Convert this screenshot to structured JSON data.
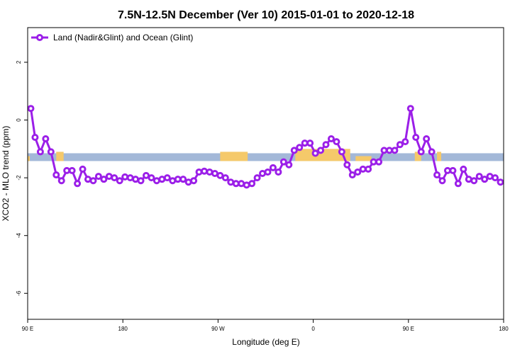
{
  "chart_data": {
    "type": "line",
    "title": "7.5N-12.5N December (Ver 10)   2015-01-01 to 2020-12-18",
    "xlabel": "Longitude (deg E)",
    "ylabel": "XCO2 - MLO trend (ppm)",
    "x_ticks": [
      {
        "value": 90,
        "label": "90 E"
      },
      {
        "value": 180,
        "label": "180"
      },
      {
        "value": 270,
        "label": "90 W"
      },
      {
        "value": 360,
        "label": "0"
      },
      {
        "value": 450,
        "label": "90 E"
      },
      {
        "value": 540,
        "label": "180"
      }
    ],
    "y_ticks": [
      {
        "value": 2,
        "label": "2"
      },
      {
        "value": 0,
        "label": "0"
      },
      {
        "value": -2,
        "label": "-2"
      },
      {
        "value": -4,
        "label": "-4"
      },
      {
        "value": -6,
        "label": "-6"
      }
    ],
    "xlim": [
      90,
      540
    ],
    "ylim": [
      -6.9,
      3.2
    ],
    "legend_position": "top-left",
    "grid": false,
    "colors": {
      "series": "#9b1fe8",
      "ocean_band": "#a3b8d8",
      "land": "#f5c96a"
    },
    "ocean_band": {
      "y_min": -1.42,
      "y_max": -1.15
    },
    "land_segments": [
      {
        "x0": 90,
        "x1": 92,
        "y_low": -1.42,
        "y_high": -1.25
      },
      {
        "x0": 117,
        "x1": 124,
        "y_low": -1.42,
        "y_high": -1.1
      },
      {
        "x0": 272,
        "x1": 298,
        "y_low": -1.42,
        "y_high": -1.1
      },
      {
        "x0": 343,
        "x1": 395,
        "y_low": -1.42,
        "y_high": -1.0
      },
      {
        "x0": 400,
        "x1": 415,
        "y_low": -1.42,
        "y_high": -1.25
      },
      {
        "x0": 456,
        "x1": 462,
        "y_low": -1.42,
        "y_high": -1.1
      },
      {
        "x0": 477,
        "x1": 481,
        "y_low": -1.42,
        "y_high": -1.1
      }
    ],
    "series": [
      {
        "name": "Land (Nadir&Glint) and Ocean (Glint)",
        "x": [
          93,
          97,
          102,
          107,
          112,
          117,
          122,
          127,
          132,
          137,
          142,
          147,
          152,
          157,
          162,
          167,
          172,
          177,
          182,
          187,
          192,
          197,
          202,
          207,
          212,
          217,
          222,
          227,
          232,
          237,
          242,
          247,
          252,
          257,
          262,
          267,
          272,
          277,
          282,
          287,
          292,
          297,
          302,
          307,
          312,
          317,
          322,
          327,
          332,
          337,
          342,
          347,
          352,
          357,
          362,
          367,
          372,
          377,
          382,
          387,
          392,
          397,
          402,
          407,
          412,
          417,
          422,
          427,
          432,
          437,
          442,
          447,
          452,
          457,
          462,
          467,
          472,
          477,
          482,
          487,
          492,
          497,
          502,
          507,
          512,
          517,
          522,
          527,
          532,
          537
        ],
        "y": [
          0.4,
          -0.6,
          -1.1,
          -0.65,
          -1.1,
          -1.9,
          -2.1,
          -1.75,
          -1.75,
          -2.2,
          -1.7,
          -2.05,
          -2.1,
          -1.95,
          -2.05,
          -1.95,
          -2.0,
          -2.1,
          -1.97,
          -2.0,
          -2.05,
          -2.1,
          -1.92,
          -2.0,
          -2.1,
          -2.05,
          -2.0,
          -2.1,
          -2.05,
          -2.05,
          -2.15,
          -2.1,
          -1.8,
          -1.77,
          -1.8,
          -1.85,
          -1.92,
          -2.0,
          -2.15,
          -2.2,
          -2.2,
          -2.25,
          -2.2,
          -2.0,
          -1.85,
          -1.8,
          -1.65,
          -1.8,
          -1.45,
          -1.55,
          -1.05,
          -0.95,
          -0.8,
          -0.8,
          -1.15,
          -1.05,
          -0.85,
          -0.65,
          -0.75,
          -1.1,
          -1.55,
          -1.9,
          -1.8,
          -1.7,
          -1.7,
          -1.45,
          -1.45,
          -1.05,
          -1.05,
          -1.05,
          -0.85,
          -0.75,
          0.4,
          -0.6,
          -1.1,
          -0.65,
          -1.1,
          -1.9,
          -2.1,
          -1.75,
          -1.75,
          -2.2,
          -1.7,
          -2.05,
          -2.1,
          -1.95,
          -2.05,
          -1.95,
          -2.0,
          -2.15
        ]
      }
    ]
  }
}
